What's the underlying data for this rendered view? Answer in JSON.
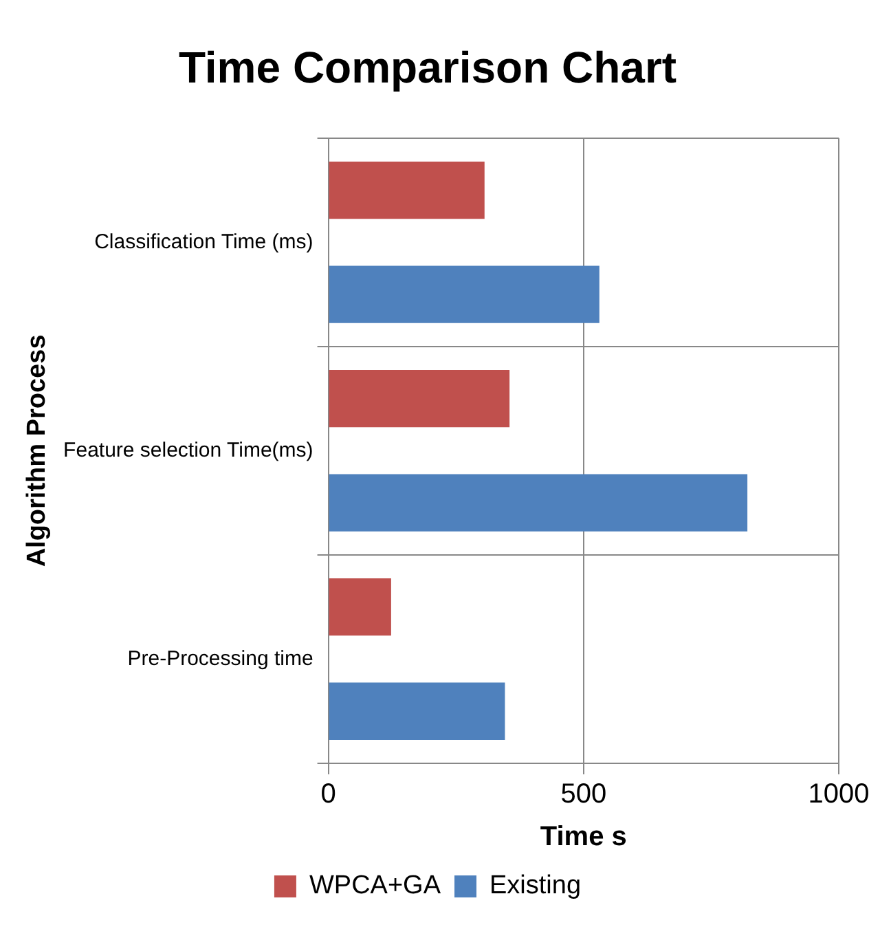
{
  "chart_data": {
    "type": "bar",
    "orientation": "horizontal",
    "title": "Time Comparison Chart",
    "xlabel": "Time s",
    "ylabel": "Algorithm Process",
    "categories": [
      "Classification Time (ms)",
      "Feature selection Time(ms)",
      "Pre-Processing time"
    ],
    "series": [
      {
        "name": "WPCA+GA",
        "color": "#c0504d",
        "values": [
          306,
          355,
          123
        ]
      },
      {
        "name": "Existing",
        "color": "#4f81bd",
        "values": [
          531,
          821,
          346
        ]
      }
    ],
    "xlim": [
      0,
      1000
    ],
    "xticks": [
      0,
      500,
      1000
    ],
    "grid": true,
    "legend": "bottom"
  }
}
